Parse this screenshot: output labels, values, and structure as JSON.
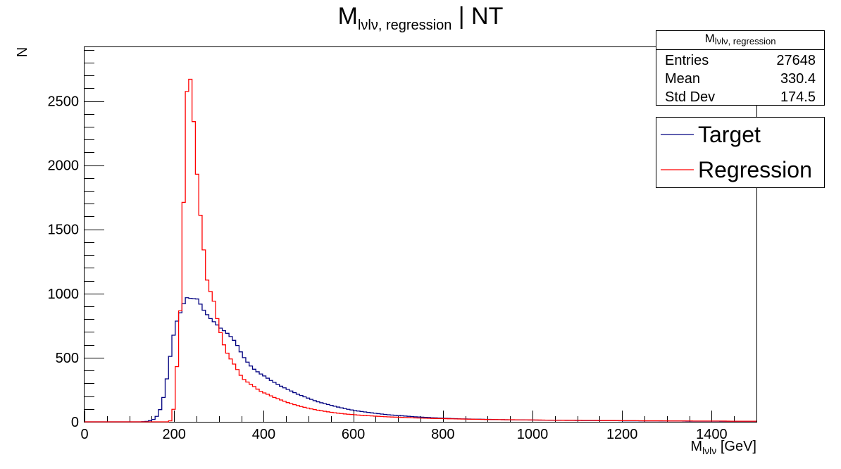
{
  "chart_data": {
    "type": "histogram",
    "title": {
      "main": "M",
      "sub": "lνlν, regression",
      "suffix": " | NT"
    },
    "xlabel": {
      "main": "M",
      "sub": "lνlν",
      "suffix": " [GeV]"
    },
    "ylabel": "N",
    "xlim": [
      0,
      1500
    ],
    "ylim": [
      0,
      2920
    ],
    "x_ticks": [
      0,
      200,
      400,
      600,
      800,
      1000,
      1200,
      1400
    ],
    "y_ticks": [
      0,
      500,
      1000,
      1500,
      2000,
      2500
    ],
    "bin_width": 7.5,
    "stats": {
      "title_main": "M",
      "title_sub": "lνlν, regression",
      "rows": [
        {
          "label": "Entries",
          "value": "27648"
        },
        {
          "label": "Mean",
          "value": "330.4"
        },
        {
          "label": "Std Dev",
          "value": "174.5"
        }
      ]
    },
    "legend_position": "top-right",
    "series": [
      {
        "name": "Target",
        "color": "#000080",
        "points": [
          [
            0,
            0
          ],
          [
            127.5,
            0
          ],
          [
            135,
            2
          ],
          [
            142.5,
            5
          ],
          [
            150,
            12
          ],
          [
            157.5,
            25
          ],
          [
            165,
            60
          ],
          [
            172.5,
            130
          ],
          [
            180,
            250
          ],
          [
            187.5,
            420
          ],
          [
            195,
            600
          ],
          [
            202.5,
            750
          ],
          [
            210,
            820
          ],
          [
            217.5,
            880
          ],
          [
            225,
            960
          ],
          [
            232.5,
            975
          ],
          [
            240,
            950
          ],
          [
            247.5,
            970
          ],
          [
            255,
            945
          ],
          [
            262.5,
            890
          ],
          [
            270,
            850
          ],
          [
            277.5,
            820
          ],
          [
            285,
            790
          ],
          [
            292.5,
            770
          ],
          [
            300,
            740
          ],
          [
            307.5,
            720
          ],
          [
            315,
            700
          ],
          [
            322.5,
            680
          ],
          [
            330,
            650
          ],
          [
            337.5,
            620
          ],
          [
            345,
            570
          ],
          [
            352.5,
            520
          ],
          [
            360,
            480
          ],
          [
            367.5,
            450
          ],
          [
            375,
            420
          ],
          [
            382.5,
            400
          ],
          [
            390,
            380
          ],
          [
            397.5,
            365
          ],
          [
            405,
            350
          ],
          [
            412.5,
            330
          ],
          [
            420,
            315
          ],
          [
            427.5,
            300
          ],
          [
            435,
            285
          ],
          [
            442.5,
            270
          ],
          [
            450,
            260
          ],
          [
            457.5,
            245
          ],
          [
            465,
            235
          ],
          [
            472.5,
            220
          ],
          [
            480,
            210
          ],
          [
            487.5,
            200
          ],
          [
            495,
            190
          ],
          [
            502.5,
            180
          ],
          [
            510,
            170
          ],
          [
            517.5,
            160
          ],
          [
            525,
            152
          ],
          [
            532.5,
            145
          ],
          [
            540,
            138
          ],
          [
            547.5,
            132
          ],
          [
            555,
            125
          ],
          [
            562.5,
            118
          ],
          [
            570,
            112
          ],
          [
            577.5,
            106
          ],
          [
            585,
            100
          ],
          [
            600,
            90
          ],
          [
            615,
            82
          ],
          [
            630,
            75
          ],
          [
            645,
            68
          ],
          [
            660,
            62
          ],
          [
            675,
            56
          ],
          [
            690,
            52
          ],
          [
            705,
            48
          ],
          [
            720,
            44
          ],
          [
            735,
            40
          ],
          [
            750,
            37
          ],
          [
            765,
            34
          ],
          [
            780,
            31
          ],
          [
            795,
            29
          ],
          [
            810,
            27
          ],
          [
            825,
            25
          ],
          [
            840,
            23
          ],
          [
            855,
            22
          ],
          [
            870,
            21
          ],
          [
            885,
            20
          ],
          [
            900,
            19
          ],
          [
            915,
            18
          ],
          [
            930,
            17
          ],
          [
            945,
            16
          ],
          [
            960,
            15
          ],
          [
            975,
            15
          ],
          [
            990,
            14
          ],
          [
            1005,
            14
          ],
          [
            1020,
            13
          ],
          [
            1035,
            13
          ],
          [
            1050,
            12
          ],
          [
            1065,
            12
          ],
          [
            1080,
            11
          ],
          [
            1095,
            11
          ],
          [
            1110,
            10
          ],
          [
            1125,
            10
          ],
          [
            1140,
            10
          ],
          [
            1155,
            9
          ],
          [
            1170,
            9
          ],
          [
            1185,
            9
          ],
          [
            1200,
            8
          ],
          [
            1215,
            8
          ],
          [
            1230,
            8
          ],
          [
            1245,
            7
          ],
          [
            1260,
            7
          ],
          [
            1275,
            7
          ],
          [
            1290,
            6
          ],
          [
            1305,
            6
          ],
          [
            1320,
            6
          ],
          [
            1335,
            6
          ],
          [
            1350,
            5
          ],
          [
            1365,
            5
          ],
          [
            1380,
            5
          ],
          [
            1395,
            5
          ],
          [
            1410,
            5
          ],
          [
            1425,
            4
          ],
          [
            1440,
            4
          ],
          [
            1455,
            4
          ],
          [
            1470,
            4
          ],
          [
            1485,
            4
          ],
          [
            1500,
            4
          ]
        ]
      },
      {
        "name": "Regression",
        "color": "#ff0000",
        "points": [
          [
            0,
            0
          ],
          [
            187.5,
            0
          ],
          [
            195,
            15
          ],
          [
            202.5,
            180
          ],
          [
            210,
            680
          ],
          [
            217.5,
            1050
          ],
          [
            225,
            2370
          ],
          [
            232.5,
            2780
          ],
          [
            240,
            2560
          ],
          [
            247.5,
            2120
          ],
          [
            255,
            1740
          ],
          [
            262.5,
            1480
          ],
          [
            270,
            1200
          ],
          [
            277.5,
            1010
          ],
          [
            285,
            1020
          ],
          [
            292.5,
            860
          ],
          [
            300,
            750
          ],
          [
            307.5,
            640
          ],
          [
            315,
            560
          ],
          [
            322.5,
            510
          ],
          [
            330,
            470
          ],
          [
            337.5,
            430
          ],
          [
            345,
            385
          ],
          [
            352.5,
            340
          ],
          [
            360,
            320
          ],
          [
            367.5,
            300
          ],
          [
            375,
            285
          ],
          [
            382.5,
            265
          ],
          [
            390,
            245
          ],
          [
            397.5,
            230
          ],
          [
            405,
            220
          ],
          [
            412.5,
            210
          ],
          [
            420,
            195
          ],
          [
            427.5,
            185
          ],
          [
            435,
            175
          ],
          [
            442.5,
            165
          ],
          [
            450,
            155
          ],
          [
            457.5,
            145
          ],
          [
            465,
            138
          ],
          [
            472.5,
            130
          ],
          [
            480,
            123
          ],
          [
            487.5,
            116
          ],
          [
            495,
            110
          ],
          [
            502.5,
            104
          ],
          [
            510,
            98
          ],
          [
            517.5,
            93
          ],
          [
            525,
            88
          ],
          [
            532.5,
            84
          ],
          [
            540,
            80
          ],
          [
            547.5,
            76
          ],
          [
            555,
            72
          ],
          [
            562.5,
            69
          ],
          [
            570,
            66
          ],
          [
            577.5,
            63
          ],
          [
            585,
            60
          ],
          [
            600,
            56
          ],
          [
            615,
            52
          ],
          [
            630,
            48
          ],
          [
            645,
            45
          ],
          [
            660,
            42
          ],
          [
            675,
            39
          ],
          [
            690,
            37
          ],
          [
            705,
            35
          ],
          [
            720,
            33
          ],
          [
            735,
            31
          ],
          [
            750,
            29
          ],
          [
            765,
            28
          ],
          [
            780,
            26
          ],
          [
            795,
            25
          ],
          [
            810,
            24
          ],
          [
            825,
            23
          ],
          [
            840,
            22
          ],
          [
            855,
            21
          ],
          [
            870,
            20
          ],
          [
            885,
            19
          ],
          [
            900,
            18
          ],
          [
            915,
            18
          ],
          [
            930,
            17
          ],
          [
            945,
            16
          ],
          [
            960,
            16
          ],
          [
            975,
            15
          ],
          [
            990,
            15
          ],
          [
            1005,
            14
          ],
          [
            1020,
            14
          ],
          [
            1035,
            13
          ],
          [
            1050,
            13
          ],
          [
            1065,
            12
          ],
          [
            1080,
            12
          ],
          [
            1095,
            12
          ],
          [
            1110,
            11
          ],
          [
            1125,
            11
          ],
          [
            1140,
            11
          ],
          [
            1155,
            10
          ],
          [
            1170,
            10
          ],
          [
            1185,
            10
          ],
          [
            1200,
            9
          ],
          [
            1215,
            9
          ],
          [
            1230,
            9
          ],
          [
            1245,
            8
          ],
          [
            1260,
            8
          ],
          [
            1275,
            8
          ],
          [
            1290,
            8
          ],
          [
            1305,
            7
          ],
          [
            1320,
            7
          ],
          [
            1335,
            7
          ],
          [
            1350,
            7
          ],
          [
            1365,
            6
          ],
          [
            1380,
            6
          ],
          [
            1395,
            6
          ],
          [
            1410,
            6
          ],
          [
            1425,
            6
          ],
          [
            1440,
            5
          ],
          [
            1455,
            5
          ],
          [
            1470,
            5
          ],
          [
            1485,
            5
          ],
          [
            1500,
            5
          ]
        ]
      }
    ]
  }
}
